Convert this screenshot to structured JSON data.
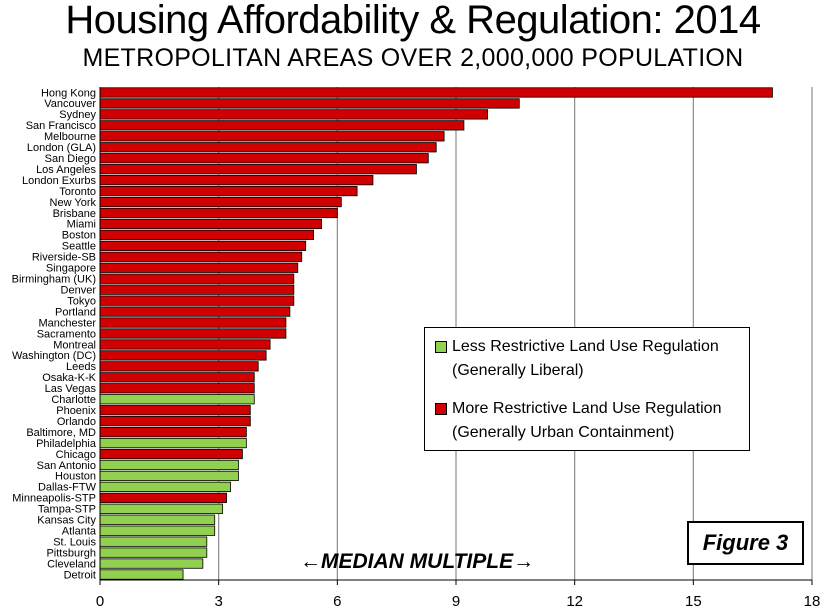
{
  "chart_data": {
    "type": "bar",
    "orientation": "horizontal",
    "title": "Housing Affordability & Regulation: 2014",
    "subtitle": "METROPOLITAN AREAS OVER 2,000,000 POPULATION",
    "xlabel": "←MEDIAN MULTIPLE→",
    "xlim": [
      0,
      18
    ],
    "xticks": [
      "0",
      "3",
      "6",
      "9",
      "12",
      "15",
      "18"
    ],
    "grid": "vertical",
    "legend_position": "right",
    "colors": {
      "less": "#92d050",
      "more": "#d00000"
    },
    "categories": [
      "Hong Kong",
      "Vancouver",
      "Sydney",
      "San Francisco",
      "Melbourne",
      "London (GLA)",
      "San Diego",
      "Los Angeles",
      "London Exurbs",
      "Toronto",
      "New York",
      "Brisbane",
      "Miami",
      "Boston",
      "Seattle",
      "Riverside-SB",
      "Singapore",
      "Birmingham (UK)",
      "Denver",
      "Tokyo",
      "Portland",
      "Manchester",
      "Sacramento",
      "Montreal",
      "Washington (DC)",
      "Leeds",
      "Osaka-K-K",
      "Las Vegas",
      "Charlotte",
      "Phoenix",
      "Orlando",
      "Baltimore, MD",
      "Philadelphia",
      "Chicago",
      "San Antonio",
      "Houston",
      "Dallas-FTW",
      "Minneapolis-STP",
      "Tampa-STP",
      "Kansas City",
      "Atlanta",
      "St. Louis",
      "Pittsburgh",
      "Cleveland",
      "Detroit"
    ],
    "values": [
      17.0,
      10.6,
      9.8,
      9.2,
      8.7,
      8.5,
      8.3,
      8.0,
      6.9,
      6.5,
      6.1,
      6.0,
      5.6,
      5.4,
      5.2,
      5.1,
      5.0,
      4.9,
      4.9,
      4.9,
      4.8,
      4.7,
      4.7,
      4.3,
      4.2,
      4.0,
      3.9,
      3.9,
      3.9,
      3.8,
      3.8,
      3.7,
      3.7,
      3.6,
      3.5,
      3.5,
      3.3,
      3.2,
      3.1,
      2.9,
      2.9,
      2.7,
      2.7,
      2.6,
      2.1
    ],
    "regulation": [
      "more",
      "more",
      "more",
      "more",
      "more",
      "more",
      "more",
      "more",
      "more",
      "more",
      "more",
      "more",
      "more",
      "more",
      "more",
      "more",
      "more",
      "more",
      "more",
      "more",
      "more",
      "more",
      "more",
      "more",
      "more",
      "more",
      "more",
      "more",
      "less",
      "more",
      "more",
      "more",
      "less",
      "more",
      "less",
      "less",
      "less",
      "more",
      "less",
      "less",
      "less",
      "less",
      "less",
      "less",
      "less"
    ]
  },
  "legend": {
    "less_line1": "Less Restrictive Land Use Regulation",
    "less_line2": "(Generally Liberal)",
    "more_line1": "More Restrictive Land Use Regulation",
    "more_line2": "(Generally Urban Containment)"
  },
  "figure_label": "Figure 3"
}
